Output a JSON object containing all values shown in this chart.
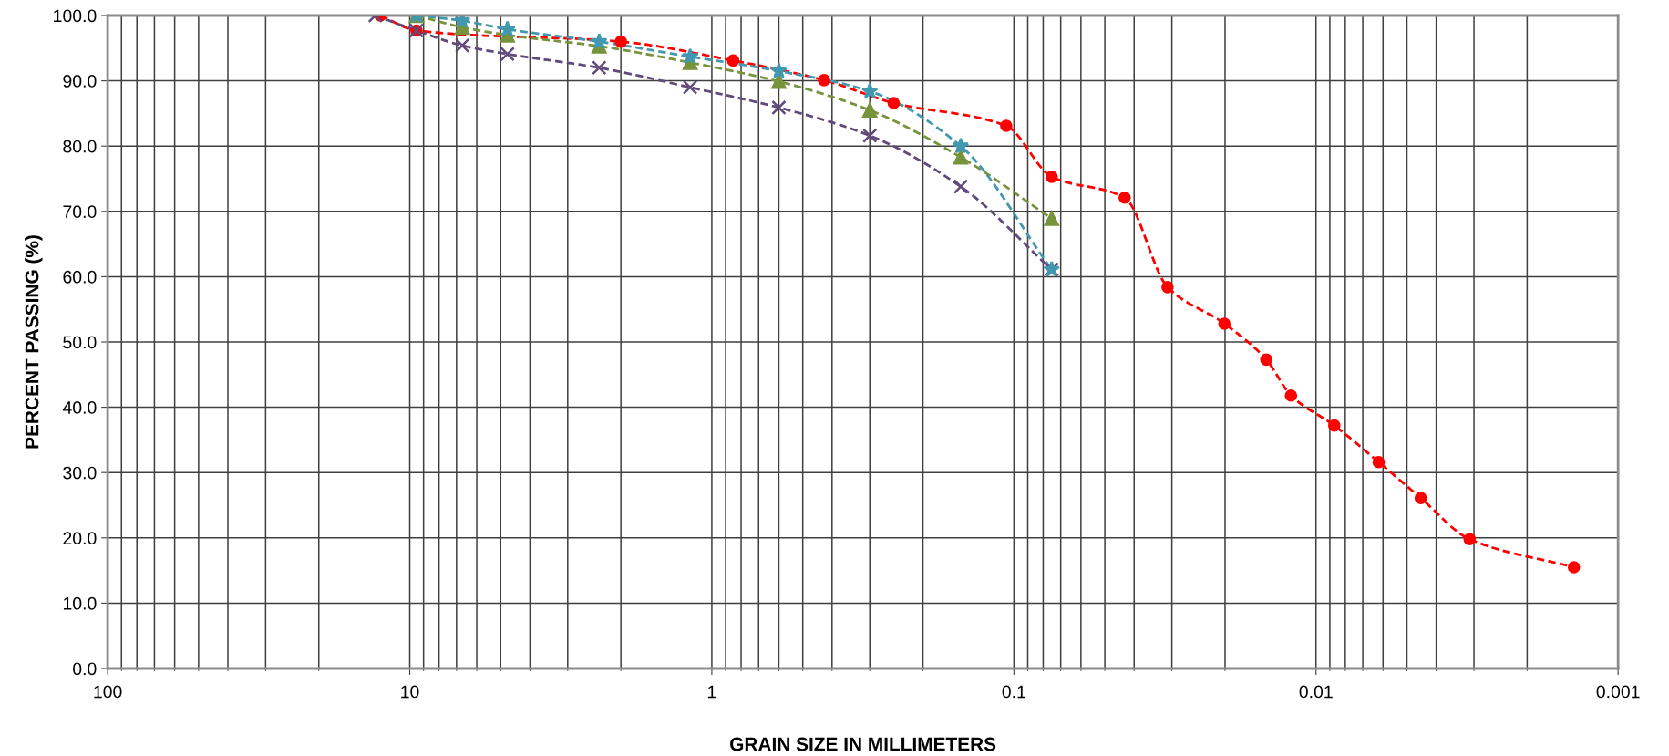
{
  "chart_data": {
    "type": "line",
    "xlabel": "GRAIN SIZE IN MILLIMETERS",
    "ylabel": "PERCENT PASSING (%)",
    "log": "x",
    "grid": true,
    "line_style": "dashed",
    "xlim": [
      100,
      0.001
    ],
    "xticks": [
      100,
      10,
      1,
      0.1,
      0.01,
      0.001
    ],
    "ylim": [
      0,
      100
    ],
    "yticks": [
      {
        "value": 0,
        "label": "0.0"
      },
      {
        "value": 10,
        "label": "10.0"
      },
      {
        "value": 20,
        "label": "20.0"
      },
      {
        "value": 30,
        "label": "30.0"
      },
      {
        "value": 40,
        "label": "40.0"
      },
      {
        "value": 50,
        "label": "50.0"
      },
      {
        "value": 60,
        "label": "60.0"
      },
      {
        "value": 70,
        "label": "70.0"
      },
      {
        "value": 80,
        "label": "80.0"
      },
      {
        "value": 90,
        "label": "90.0"
      },
      {
        "value": 100,
        "label": "100.0"
      }
    ],
    "series": [
      {
        "color": "#ff0000",
        "marker": "circle",
        "x": [
          12.5,
          9.5,
          2.0,
          0.85,
          0.425,
          0.25,
          0.106,
          0.075,
          0.043,
          0.031,
          0.0201,
          0.0146,
          0.0121,
          0.0087,
          0.0062,
          0.0045,
          0.0031,
          0.0014
        ],
        "values": [
          100,
          97.7,
          96.0,
          93.1,
          90.1,
          86.6,
          83.1,
          75.3,
          72.1,
          58.4,
          52.8,
          47.3,
          41.8,
          37.2,
          31.6,
          26.1,
          19.8,
          15.5
        ]
      },
      {
        "color": "#604a7b",
        "marker": "cross",
        "x": [
          13,
          9.5,
          6.7,
          4.75,
          2.36,
          1.18,
          0.6,
          0.3,
          0.15,
          0.075
        ],
        "values": [
          100,
          97.7,
          95.4,
          94.1,
          92.0,
          89.0,
          85.9,
          81.6,
          73.8,
          61.1
        ]
      },
      {
        "color": "#77933c",
        "marker": "triangle",
        "x": [
          9.5,
          6.7,
          4.75,
          2.36,
          1.18,
          0.6,
          0.3,
          0.15,
          0.075
        ],
        "values": [
          100,
          98.2,
          97.0,
          95.3,
          92.8,
          89.9,
          85.5,
          78.3,
          68.9
        ]
      },
      {
        "color": "#4198af",
        "marker": "star",
        "x": [
          9.5,
          6.7,
          4.75,
          2.36,
          1.18,
          0.6,
          0.3,
          0.15,
          0.075
        ],
        "values": [
          100,
          99.2,
          97.9,
          96.0,
          93.7,
          91.5,
          88.4,
          80.0,
          61.1
        ]
      }
    ]
  }
}
